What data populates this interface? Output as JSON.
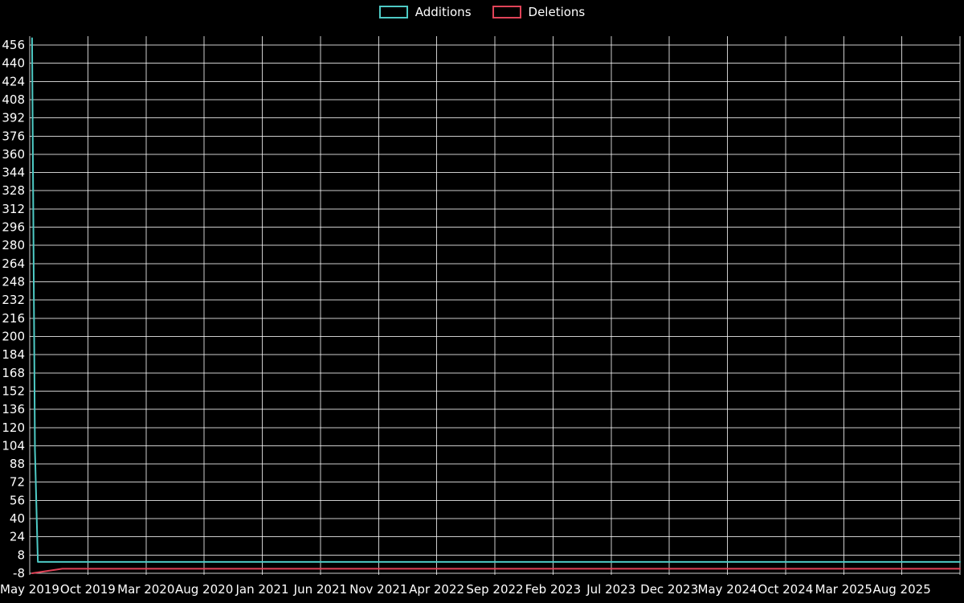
{
  "legend": {
    "items": [
      {
        "label": "Additions",
        "color": "#4ecac5"
      },
      {
        "label": "Deletions",
        "color": "#e04358"
      }
    ]
  },
  "chart_data": {
    "type": "line",
    "title": "",
    "xlabel": "",
    "ylabel": "",
    "background": "#000000",
    "grid": true,
    "grid_color": "rgba(255,255,255,0.8)",
    "text_color": "#ffffff",
    "legend_position": "top-center",
    "x_tick_labels": [
      "May 2019",
      "Oct 2019",
      "Mar 2020",
      "Aug 2020",
      "Jan 2021",
      "Jun 2021",
      "Nov 2021",
      "Apr 2022",
      "Sep 2022",
      "Feb 2023",
      "Jul 2023",
      "Dec 2023",
      "May 2024",
      "Oct 2024",
      "Mar 2025",
      "Aug 2025"
    ],
    "x_tick_months": [
      0,
      5,
      10,
      15,
      20,
      25,
      30,
      35,
      40,
      45,
      50,
      55,
      60,
      65,
      70,
      75
    ],
    "x_range": [
      0,
      80
    ],
    "y_ticks": [
      456,
      440,
      424,
      408,
      392,
      376,
      360,
      344,
      328,
      312,
      296,
      280,
      264,
      248,
      232,
      216,
      200,
      184,
      168,
      152,
      136,
      120,
      104,
      88,
      72,
      56,
      40,
      24,
      8,
      -8
    ],
    "ylim": [
      -8,
      456
    ],
    "series": [
      {
        "name": "Additions",
        "color": "#4ecac5",
        "points": [
          [
            0.2,
            462
          ],
          [
            0.45,
            100
          ],
          [
            0.7,
            2
          ],
          [
            80,
            2
          ]
        ]
      },
      {
        "name": "Deletions",
        "color": "#e04358",
        "points": [
          [
            0.2,
            -8
          ],
          [
            2.8,
            -4
          ],
          [
            80,
            -4
          ]
        ]
      }
    ]
  }
}
